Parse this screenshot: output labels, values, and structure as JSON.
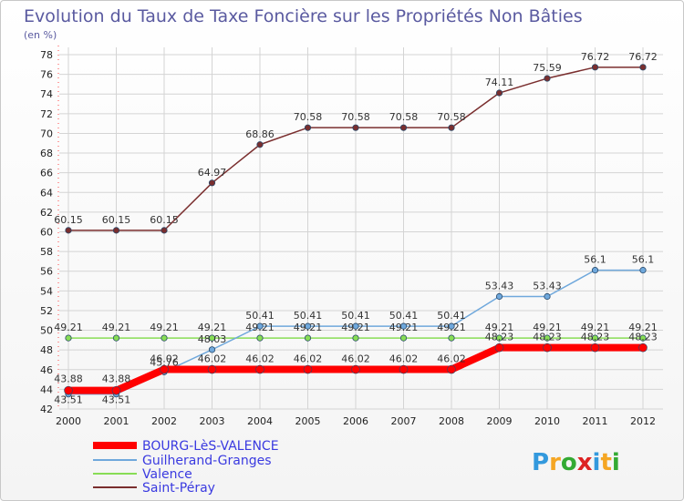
{
  "chart_data": {
    "type": "line",
    "title": "Evolution du Taux de Taxe Foncière sur les Propriétés Non Bâties",
    "subtitle": "(en %)",
    "xlabel": "",
    "ylabel": "",
    "x": [
      "2000",
      "2001",
      "2002",
      "2003",
      "2004",
      "2005",
      "2006",
      "2007",
      "2008",
      "2009",
      "2010",
      "2011",
      "2012"
    ],
    "ylim": [
      42,
      78
    ],
    "yticks": [
      42,
      44,
      46,
      48,
      50,
      52,
      54,
      56,
      58,
      60,
      62,
      64,
      66,
      68,
      70,
      72,
      74,
      76,
      78
    ],
    "grid": true,
    "legend_position": "bottom-left",
    "series": [
      {
        "name": "BOURG-LèS-VALENCE",
        "color": "#ff0000",
        "width": 8,
        "values": [
          43.88,
          43.88,
          46.02,
          46.02,
          46.02,
          46.02,
          46.02,
          46.02,
          46.02,
          48.23,
          48.23,
          48.23,
          48.23
        ]
      },
      {
        "name": "Guilherand-Granges",
        "color": "#6fa8dc",
        "width": 1.5,
        "values": [
          43.51,
          43.51,
          45.76,
          48.03,
          50.41,
          50.41,
          50.41,
          50.41,
          50.41,
          53.43,
          53.43,
          56.1,
          56.1
        ]
      },
      {
        "name": "Valence",
        "color": "#88dd55",
        "width": 1.5,
        "values": [
          49.21,
          49.21,
          49.21,
          49.21,
          49.21,
          49.21,
          49.21,
          49.21,
          49.21,
          49.21,
          49.21,
          49.21,
          49.21
        ]
      },
      {
        "name": "Saint-Péray",
        "color": "#7a2e2e",
        "width": 1.5,
        "values": [
          60.15,
          60.15,
          60.15,
          64.97,
          68.86,
          70.58,
          70.58,
          70.58,
          70.58,
          74.11,
          75.59,
          76.72,
          76.72
        ]
      }
    ]
  },
  "brand": {
    "logo_text": "Proxiti",
    "letter_colors": [
      "#3399dd",
      "#f5a623",
      "#33aa33",
      "#dd2222",
      "#3399dd",
      "#f5a623",
      "#33aa33"
    ]
  },
  "colors": {
    "title": "#5a5aa0",
    "legend_text": "#3a3ae0",
    "axis_text": "#222222",
    "label_text": "#333333"
  }
}
